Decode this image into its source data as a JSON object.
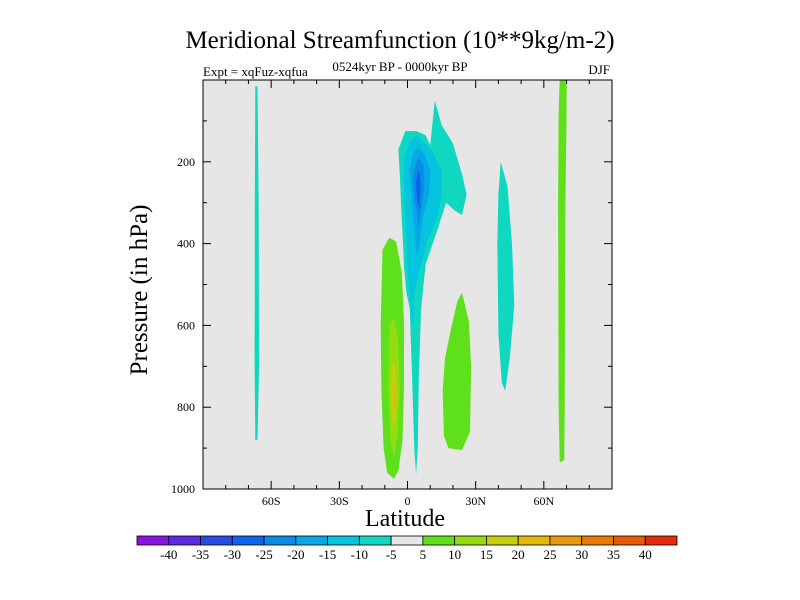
{
  "chart_data": {
    "type": "contour",
    "title": "Meridional Streamfunction (10**9kg/m-2)",
    "experiment_label": "Expt = xqFuz-xqfua",
    "period_label": "0524kyr BP - 0000kyr BP",
    "season_label": "DJF",
    "xlabel": "Latitude",
    "ylabel": "Pressure (in hPa)",
    "x_range": [
      -90,
      90
    ],
    "y_range": [
      0,
      1000
    ],
    "y_inverted": true,
    "x_ticks": [
      {
        "value": -60,
        "label": "60S"
      },
      {
        "value": -30,
        "label": "30S"
      },
      {
        "value": 0,
        "label": "0"
      },
      {
        "value": 30,
        "label": "30N"
      },
      {
        "value": 60,
        "label": "60N"
      }
    ],
    "y_ticks": [
      {
        "value": 200,
        "label": "200"
      },
      {
        "value": 400,
        "label": "400"
      },
      {
        "value": 600,
        "label": "600"
      },
      {
        "value": 800,
        "label": "800"
      },
      {
        "value": 1000,
        "label": "1000"
      }
    ],
    "colorbar": {
      "labels": [
        "-40",
        "-35",
        "-30",
        "-25",
        "-20",
        "-15",
        "-10",
        "-5",
        "5",
        "10",
        "15",
        "20",
        "25",
        "30",
        "35",
        "40"
      ],
      "colors": [
        "#8a14e6",
        "#5a2ce6",
        "#2a4ae8",
        "#0c64ee",
        "#0a8be6",
        "#06a8e6",
        "#04c4e0",
        "#10d8c0",
        "#e6e6e6",
        "#5ee01a",
        "#92dc10",
        "#c4d00c",
        "#e6b808",
        "#e69a08",
        "#e87a08",
        "#e65a08",
        "#e62a10"
      ]
    },
    "background_color": "#e6e6e6",
    "features": [
      {
        "name": "sh-polar-negative-strip",
        "level": "-10 to -5",
        "color": "#10d8c0",
        "polygon": [
          [
            -67,
            15
          ],
          [
            -66,
            15
          ],
          [
            -65.5,
            300
          ],
          [
            -65.3,
            700
          ],
          [
            -66,
            880
          ],
          [
            -67,
            880
          ],
          [
            -67.3,
            700
          ],
          [
            -67.2,
            300
          ]
        ]
      },
      {
        "name": "tropical-negative-cell-outer",
        "level": "-10 to -5",
        "color": "#10d8c0",
        "polygon": [
          [
            -4,
            170
          ],
          [
            -1,
            125
          ],
          [
            4,
            125
          ],
          [
            8,
            135
          ],
          [
            10,
            160
          ],
          [
            11,
            105
          ],
          [
            12,
            50
          ],
          [
            15,
            110
          ],
          [
            20,
            155
          ],
          [
            24,
            230
          ],
          [
            26,
            280
          ],
          [
            24,
            330
          ],
          [
            21,
            320
          ],
          [
            17,
            300
          ],
          [
            13,
            370
          ],
          [
            8,
            450
          ],
          [
            6,
            560
          ],
          [
            5,
            720
          ],
          [
            4.5,
            900
          ],
          [
            3.8,
            965
          ],
          [
            3,
            900
          ],
          [
            2,
            720
          ],
          [
            1,
            560
          ],
          [
            -0.5,
            520
          ],
          [
            -1.5,
            460
          ],
          [
            -2,
            400
          ],
          [
            -2.8,
            310
          ],
          [
            -3.3,
            240
          ]
        ]
      },
      {
        "name": "tropical-negative-cell-15",
        "level": "-15 to -10",
        "color": "#04c4e0",
        "polygon": [
          [
            -1.5,
            195
          ],
          [
            1,
            150
          ],
          [
            4,
            135
          ],
          [
            7,
            150
          ],
          [
            11,
            175
          ],
          [
            15,
            220
          ],
          [
            15,
            280
          ],
          [
            13,
            340
          ],
          [
            9,
            390
          ],
          [
            5,
            470
          ],
          [
            3,
            520
          ],
          [
            2.5,
            610
          ],
          [
            1.5,
            560
          ],
          [
            0,
            460
          ],
          [
            -0.5,
            380
          ],
          [
            -1.3,
            300
          ]
        ]
      },
      {
        "name": "tropical-negative-cell-20",
        "level": "-20 to -15",
        "color": "#06a8e6",
        "polygon": [
          [
            1,
            220
          ],
          [
            2.5,
            180
          ],
          [
            4.5,
            165
          ],
          [
            7.5,
            180
          ],
          [
            10,
            220
          ],
          [
            9.5,
            280
          ],
          [
            7,
            330
          ],
          [
            5.3,
            400
          ],
          [
            4.2,
            430
          ],
          [
            3.2,
            380
          ],
          [
            2.2,
            320
          ],
          [
            1.5,
            270
          ]
        ]
      },
      {
        "name": "tropical-negative-cell-25",
        "level": "-25 to -20",
        "color": "#0a8be6",
        "polygon": [
          [
            2.5,
            240
          ],
          [
            3.5,
            205
          ],
          [
            5,
            190
          ],
          [
            7,
            210
          ],
          [
            7.5,
            260
          ],
          [
            6,
            320
          ],
          [
            4.8,
            360
          ],
          [
            4,
            320
          ],
          [
            3,
            290
          ]
        ]
      },
      {
        "name": "tropical-negative-cell-30",
        "level": "-30 to -25",
        "color": "#0c64ee",
        "polygon": [
          [
            3.6,
            255
          ],
          [
            4.4,
            225
          ],
          [
            5.4,
            225
          ],
          [
            5.8,
            265
          ],
          [
            5.2,
            315
          ],
          [
            4.4,
            300
          ]
        ]
      },
      {
        "name": "sh-subtropical-positive-cell",
        "level": "5 to 10",
        "color": "#5ee01a",
        "polygon": [
          [
            -11,
            415
          ],
          [
            -8,
            385
          ],
          [
            -5,
            395
          ],
          [
            -2.5,
            470
          ],
          [
            -1.5,
            600
          ],
          [
            -1.6,
            760
          ],
          [
            -2.2,
            880
          ],
          [
            -4,
            955
          ],
          [
            -6,
            975
          ],
          [
            -9,
            960
          ],
          [
            -10.5,
            900
          ],
          [
            -11.5,
            760
          ],
          [
            -11.8,
            600
          ]
        ]
      },
      {
        "name": "sh-subtropical-positive-10",
        "level": "10 to 15",
        "color": "#92dc10",
        "polygon": [
          [
            -8,
            600
          ],
          [
            -6,
            580
          ],
          [
            -4,
            640
          ],
          [
            -3.5,
            760
          ],
          [
            -4.3,
            870
          ],
          [
            -6,
            920
          ],
          [
            -7.5,
            880
          ],
          [
            -8.5,
            760
          ]
        ]
      },
      {
        "name": "sh-subtropical-positive-15",
        "level": "15 to 20",
        "color": "#c4d00c",
        "polygon": [
          [
            -7,
            700
          ],
          [
            -5.5,
            690
          ],
          [
            -4.8,
            760
          ],
          [
            -5.2,
            830
          ],
          [
            -6,
            850
          ],
          [
            -7,
            820
          ],
          [
            -7.4,
            760
          ]
        ]
      },
      {
        "name": "sh-subtropical-positive-20",
        "level": "20 to 25",
        "color": "#e6b808",
        "polygon": [
          [
            -6.5,
            740
          ],
          [
            -5.6,
            735
          ],
          [
            -5.3,
            780
          ],
          [
            -5.6,
            810
          ],
          [
            -6.3,
            800
          ]
        ]
      },
      {
        "name": "nh-subtropical-positive-cell",
        "level": "5 to 10",
        "color": "#5ee01a",
        "polygon": [
          [
            24,
            520
          ],
          [
            27,
            590
          ],
          [
            28,
            700
          ],
          [
            27.5,
            860
          ],
          [
            24,
            905
          ],
          [
            18,
            900
          ],
          [
            16,
            870
          ],
          [
            15.5,
            760
          ],
          [
            16.5,
            680
          ],
          [
            19.5,
            600
          ],
          [
            22,
            540
          ]
        ]
      },
      {
        "name": "nh-midlatitude-negative-cell",
        "level": "-10 to -5",
        "color": "#10d8c0",
        "polygon": [
          [
            41,
            200
          ],
          [
            44,
            260
          ],
          [
            46,
            400
          ],
          [
            47,
            550
          ],
          [
            45,
            680
          ],
          [
            43,
            760
          ],
          [
            41.5,
            740
          ],
          [
            40,
            620
          ],
          [
            39.5,
            400
          ],
          [
            40,
            280
          ]
        ]
      },
      {
        "name": "nh-polar-positive-strip",
        "level": "5 to 10",
        "color": "#5ee01a",
        "polygon": [
          [
            67,
            0
          ],
          [
            70,
            0
          ],
          [
            70,
            80
          ],
          [
            69.5,
            300
          ],
          [
            69.2,
            800
          ],
          [
            69,
            930
          ],
          [
            67,
            935
          ],
          [
            66.5,
            800
          ],
          [
            66.3,
            300
          ],
          [
            66.5,
            80
          ]
        ]
      }
    ]
  }
}
